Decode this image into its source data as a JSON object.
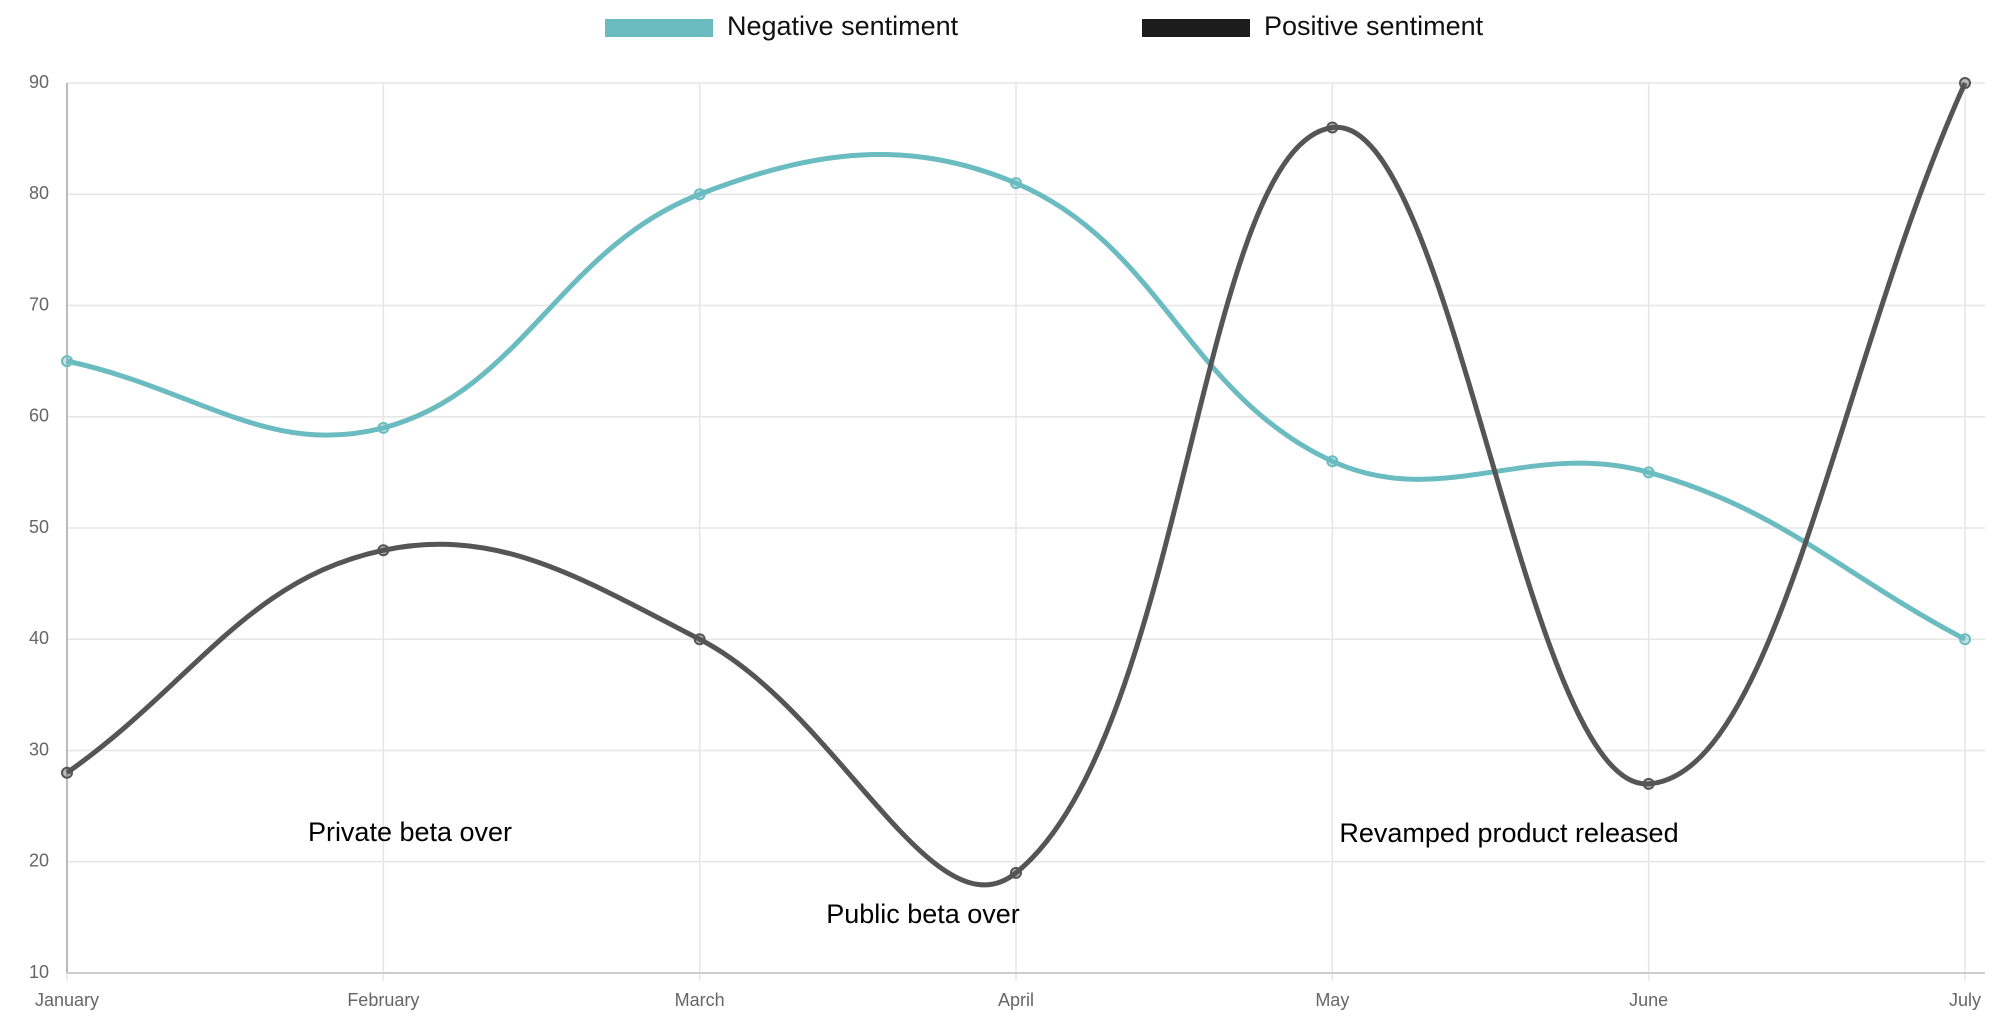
{
  "chart_data": {
    "type": "line",
    "categories": [
      "January",
      "February",
      "March",
      "April",
      "May",
      "June",
      "July"
    ],
    "series": [
      {
        "name": "Negative sentiment",
        "color": "#6bbcc0",
        "values": [
          65,
          59,
          80,
          81,
          56,
          55,
          40
        ]
      },
      {
        "name": "Positive sentiment",
        "color": "#555555",
        "values": [
          28,
          48,
          40,
          19,
          86,
          27,
          90
        ]
      }
    ],
    "ylim": [
      10,
      90
    ],
    "yticks": [
      10,
      20,
      30,
      40,
      50,
      60,
      70,
      80,
      90
    ],
    "grid": true,
    "legend": "top",
    "annotations": [
      "Private beta over",
      "Public beta over",
      "Revamped product released"
    ]
  }
}
